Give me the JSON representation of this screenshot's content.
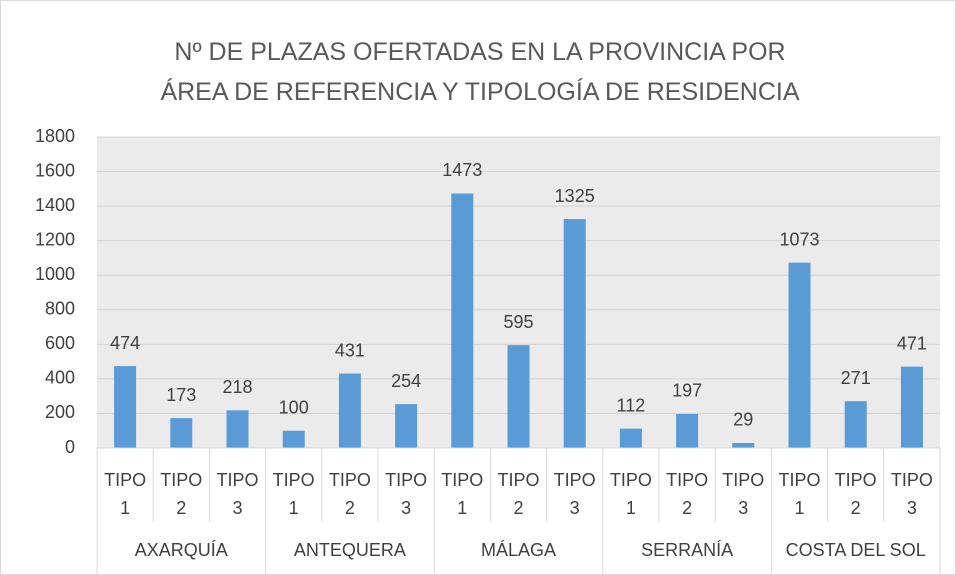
{
  "chart_data": {
    "type": "bar",
    "title": "Nº DE PLAZAS OFERTADAS EN LA PROVINCIA POR ÁREA DE REFERENCIA Y TIPOLOGÍA DE RESIDENCIA",
    "color": "#5b9bd5",
    "ylim": [
      0,
      1800
    ],
    "yticks": [
      0,
      200,
      400,
      600,
      800,
      1000,
      1200,
      1400,
      1600,
      1800
    ],
    "grid": true,
    "groups": [
      {
        "name": "AXARQUÍA",
        "categories": [
          "TIPO 1",
          "TIPO 2",
          "TIPO 3"
        ],
        "values": [
          474,
          173,
          218
        ]
      },
      {
        "name": "ANTEQUERA",
        "categories": [
          "TIPO 1",
          "TIPO 2",
          "TIPO 3"
        ],
        "values": [
          100,
          431,
          254
        ]
      },
      {
        "name": "MÁLAGA",
        "categories": [
          "TIPO 1",
          "TIPO 2",
          "TIPO 3"
        ],
        "values": [
          1473,
          595,
          1325
        ]
      },
      {
        "name": "SERRANÍA",
        "categories": [
          "TIPO 1",
          "TIPO 2",
          "TIPO 3"
        ],
        "values": [
          112,
          197,
          29
        ]
      },
      {
        "name": "COSTA DEL SOL",
        "categories": [
          "TIPO 1",
          "TIPO 2",
          "TIPO 3"
        ],
        "values": [
          1073,
          271,
          471
        ]
      }
    ]
  }
}
